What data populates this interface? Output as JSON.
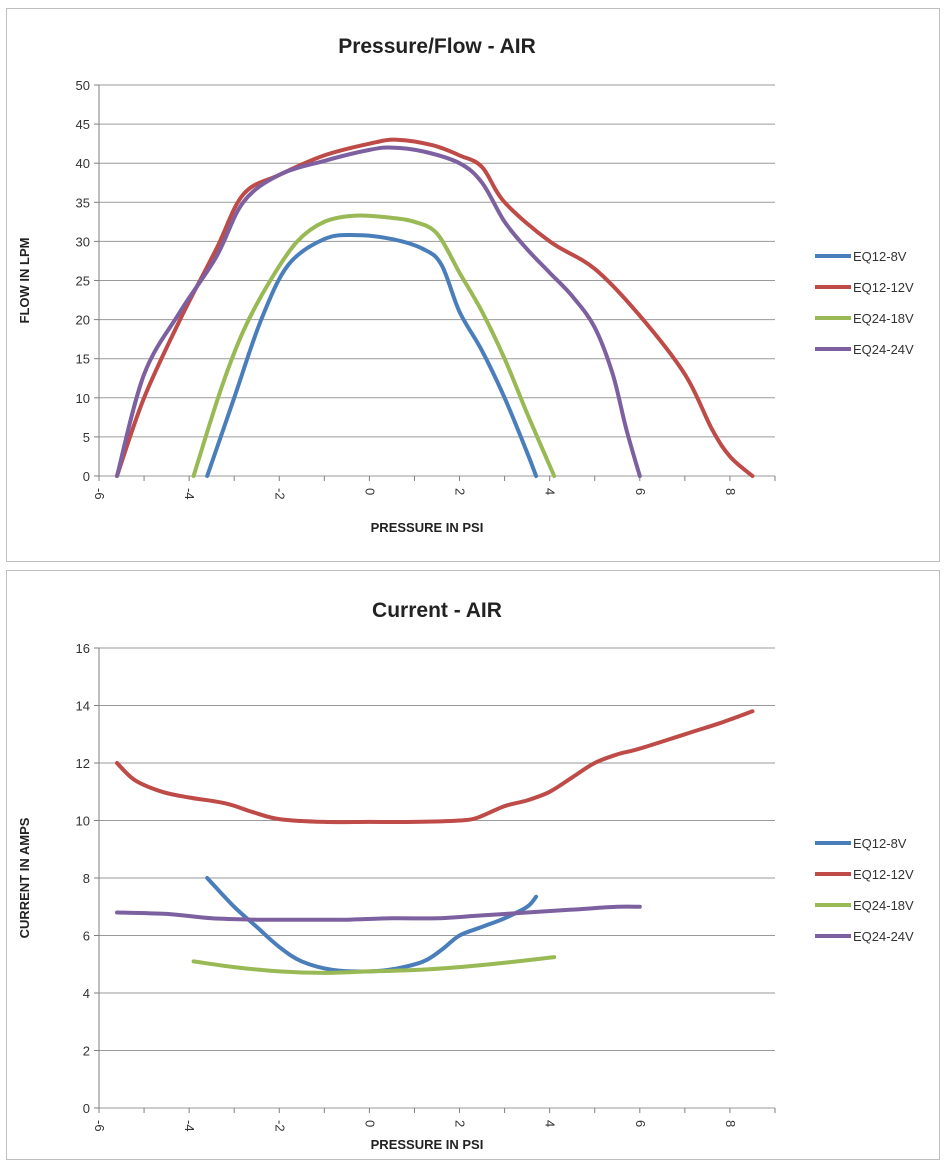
{
  "chart_data": [
    {
      "type": "line",
      "title": "Pressure/Flow - AIR",
      "xlabel": "PRESSURE IN PSI",
      "ylabel": "FLOW IN LPM",
      "xlim": [
        -6,
        9
      ],
      "ylim": [
        0,
        50
      ],
      "xticks": [
        -6,
        -4,
        -2,
        0,
        2,
        4,
        6,
        8
      ],
      "yticks": [
        0,
        5,
        10,
        15,
        20,
        25,
        30,
        35,
        40,
        45,
        50
      ],
      "grid": true,
      "legend": "right",
      "series": [
        {
          "name": "EQ12-8V",
          "color": "#4a7ebb",
          "points": [
            [
              -3.6,
              0
            ],
            [
              -3.0,
              10
            ],
            [
              -2.4,
              20
            ],
            [
              -1.8,
              27
            ],
            [
              -1.0,
              30.3
            ],
            [
              -0.3,
              30.8
            ],
            [
              0.5,
              30.3
            ],
            [
              1.2,
              29
            ],
            [
              1.6,
              27
            ],
            [
              2.0,
              21
            ],
            [
              2.5,
              16
            ],
            [
              3.0,
              10
            ],
            [
              3.5,
              3
            ],
            [
              3.7,
              0
            ]
          ]
        },
        {
          "name": "EQ12-12V",
          "color": "#be4b48",
          "points": [
            [
              -5.6,
              0
            ],
            [
              -5.0,
              10
            ],
            [
              -4.2,
              20
            ],
            [
              -3.4,
              29
            ],
            [
              -2.8,
              36
            ],
            [
              -2.0,
              38.5
            ],
            [
              -1.0,
              41
            ],
            [
              0.0,
              42.5
            ],
            [
              0.6,
              43
            ],
            [
              1.4,
              42.3
            ],
            [
              2.0,
              41
            ],
            [
              2.5,
              39.5
            ],
            [
              3.0,
              35
            ],
            [
              4.0,
              30
            ],
            [
              5.0,
              26.5
            ],
            [
              6.0,
              20.5
            ],
            [
              7.0,
              13
            ],
            [
              7.6,
              6
            ],
            [
              8.0,
              2.5
            ],
            [
              8.5,
              0
            ]
          ]
        },
        {
          "name": "EQ24-18V",
          "color": "#98b954",
          "points": [
            [
              -3.9,
              0
            ],
            [
              -3.3,
              11
            ],
            [
              -2.8,
              18.5
            ],
            [
              -2.2,
              25
            ],
            [
              -1.6,
              30
            ],
            [
              -1.0,
              32.5
            ],
            [
              -0.3,
              33.3
            ],
            [
              0.5,
              33
            ],
            [
              1.0,
              32.5
            ],
            [
              1.5,
              31
            ],
            [
              2.0,
              26
            ],
            [
              2.5,
              21
            ],
            [
              3.0,
              15
            ],
            [
              3.5,
              8
            ],
            [
              4.1,
              0
            ]
          ]
        },
        {
          "name": "EQ24-24V",
          "color": "#7d60a0",
          "points": [
            [
              -5.6,
              0
            ],
            [
              -5.0,
              13
            ],
            [
              -4.2,
              21
            ],
            [
              -3.4,
              28
            ],
            [
              -2.8,
              35
            ],
            [
              -2.0,
              38.5
            ],
            [
              -1.0,
              40.3
            ],
            [
              0.0,
              41.7
            ],
            [
              0.5,
              42
            ],
            [
              1.2,
              41.5
            ],
            [
              2.0,
              40
            ],
            [
              2.5,
              37.5
            ],
            [
              3.0,
              32.5
            ],
            [
              3.5,
              29
            ],
            [
              4.0,
              26
            ],
            [
              4.5,
              23
            ],
            [
              5.0,
              19
            ],
            [
              5.4,
              13
            ],
            [
              5.7,
              6
            ],
            [
              6.0,
              0
            ]
          ]
        }
      ]
    },
    {
      "type": "line",
      "title": "Current - AIR",
      "xlabel": "PRESSURE IN PSI",
      "ylabel": "CURRENT IN AMPS",
      "xlim": [
        -6,
        9
      ],
      "ylim": [
        0,
        16
      ],
      "xticks": [
        -6,
        -4,
        -2,
        0,
        2,
        4,
        6,
        8
      ],
      "yticks": [
        0,
        2,
        4,
        6,
        8,
        10,
        12,
        14,
        16
      ],
      "grid": true,
      "legend": "right",
      "series": [
        {
          "name": "EQ12-8V",
          "color": "#4a7ebb",
          "points": [
            [
              -3.6,
              8.0
            ],
            [
              -3.0,
              7.0
            ],
            [
              -2.5,
              6.3
            ],
            [
              -2.0,
              5.6
            ],
            [
              -1.5,
              5.1
            ],
            [
              -0.8,
              4.8
            ],
            [
              0.0,
              4.75
            ],
            [
              0.6,
              4.85
            ],
            [
              1.2,
              5.1
            ],
            [
              1.6,
              5.5
            ],
            [
              2.0,
              6.0
            ],
            [
              2.5,
              6.3
            ],
            [
              3.0,
              6.6
            ],
            [
              3.5,
              7.0
            ],
            [
              3.7,
              7.35
            ]
          ]
        },
        {
          "name": "EQ12-12V",
          "color": "#be4b48",
          "points": [
            [
              -5.6,
              12.0
            ],
            [
              -5.2,
              11.4
            ],
            [
              -4.6,
              11.0
            ],
            [
              -4.0,
              10.8
            ],
            [
              -3.2,
              10.6
            ],
            [
              -2.6,
              10.3
            ],
            [
              -2.0,
              10.05
            ],
            [
              -1.0,
              9.95
            ],
            [
              0.0,
              9.95
            ],
            [
              1.0,
              9.95
            ],
            [
              2.0,
              10.0
            ],
            [
              2.4,
              10.1
            ],
            [
              3.0,
              10.5
            ],
            [
              3.5,
              10.7
            ],
            [
              4.0,
              11.0
            ],
            [
              4.5,
              11.5
            ],
            [
              5.0,
              12.0
            ],
            [
              5.5,
              12.3
            ],
            [
              6.0,
              12.5
            ],
            [
              7.0,
              13.0
            ],
            [
              7.8,
              13.4
            ],
            [
              8.5,
              13.8
            ]
          ]
        },
        {
          "name": "EQ24-18V",
          "color": "#98b954",
          "points": [
            [
              -3.9,
              5.1
            ],
            [
              -3.0,
              4.9
            ],
            [
              -2.0,
              4.75
            ],
            [
              -1.0,
              4.7
            ],
            [
              0.0,
              4.75
            ],
            [
              1.0,
              4.8
            ],
            [
              2.0,
              4.9
            ],
            [
              3.0,
              5.05
            ],
            [
              4.1,
              5.25
            ]
          ]
        },
        {
          "name": "EQ24-24V",
          "color": "#7d60a0",
          "points": [
            [
              -5.6,
              6.8
            ],
            [
              -4.5,
              6.75
            ],
            [
              -3.5,
              6.6
            ],
            [
              -2.5,
              6.55
            ],
            [
              -1.5,
              6.55
            ],
            [
              -0.5,
              6.55
            ],
            [
              0.5,
              6.6
            ],
            [
              1.5,
              6.6
            ],
            [
              2.5,
              6.7
            ],
            [
              3.5,
              6.8
            ],
            [
              4.5,
              6.9
            ],
            [
              5.5,
              7.0
            ],
            [
              6.0,
              7.0
            ]
          ]
        }
      ]
    }
  ]
}
